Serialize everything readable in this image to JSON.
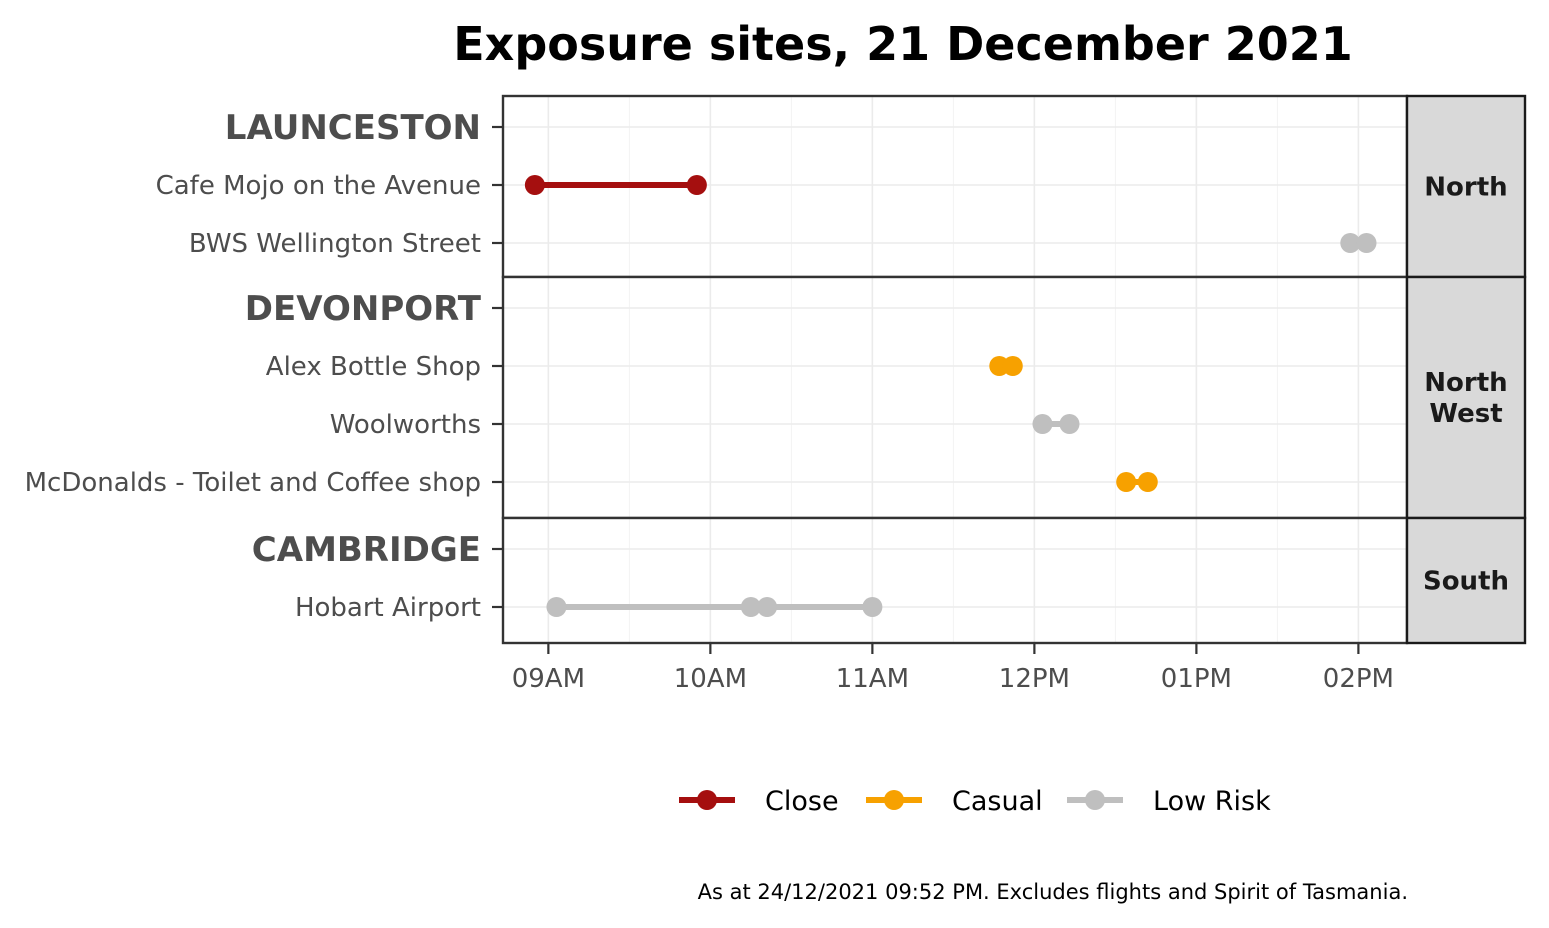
{
  "chart_data": {
    "type": "dumbbell",
    "title": "Exposure sites, 21 December 2021",
    "caption": "As at 24/12/2021 09:52 PM. Excludes flights and Spirit of Tasmania.",
    "x_ticks": [
      "09AM",
      "10AM",
      "11AM",
      "12PM",
      "01PM",
      "02PM"
    ],
    "x_tick_hours": [
      9,
      10,
      11,
      12,
      13,
      14
    ],
    "xlim_hours": [
      8.72,
      14.3
    ],
    "grid": true,
    "legend_position": "bottom",
    "colors": {
      "Close": "#a50f0f",
      "Casual": "#f7a100",
      "Low Risk": "#bfbfbf"
    },
    "legend": [
      "Close",
      "Casual",
      "Low Risk"
    ],
    "panels": [
      {
        "region": "North",
        "rows": [
          {
            "label": "LAUNCESTON",
            "kind": "town",
            "segments": []
          },
          {
            "label": "Cafe Mojo on the Avenue",
            "kind": "site",
            "segments": [
              {
                "start": "08:55",
                "end": "09:55",
                "risk": "Close"
              }
            ]
          },
          {
            "label": "BWS Wellington Street",
            "kind": "site",
            "segments": [
              {
                "start": "13:57",
                "end": "14:03",
                "risk": "Low Risk"
              }
            ]
          }
        ]
      },
      {
        "region": "North\nWest",
        "rows": [
          {
            "label": "DEVONPORT",
            "kind": "town",
            "segments": []
          },
          {
            "label": "Alex Bottle Shop",
            "kind": "site",
            "segments": [
              {
                "start": "11:47",
                "end": "11:52",
                "risk": "Casual"
              }
            ]
          },
          {
            "label": "Woolworths",
            "kind": "site",
            "segments": [
              {
                "start": "12:03",
                "end": "12:13",
                "risk": "Low Risk"
              }
            ]
          },
          {
            "label": "McDonalds - Toilet and Coffee shop",
            "kind": "site",
            "segments": [
              {
                "start": "12:34",
                "end": "12:42",
                "risk": "Casual"
              }
            ]
          }
        ]
      },
      {
        "region": "South",
        "rows": [
          {
            "label": "CAMBRIDGE",
            "kind": "town",
            "segments": []
          },
          {
            "label": "Hobart Airport",
            "kind": "site",
            "segments": [
              {
                "start": "09:03",
                "end": "10:15",
                "risk": "Low Risk"
              },
              {
                "start": "10:21",
                "end": "11:00",
                "risk": "Low Risk"
              }
            ]
          }
        ]
      }
    ]
  }
}
